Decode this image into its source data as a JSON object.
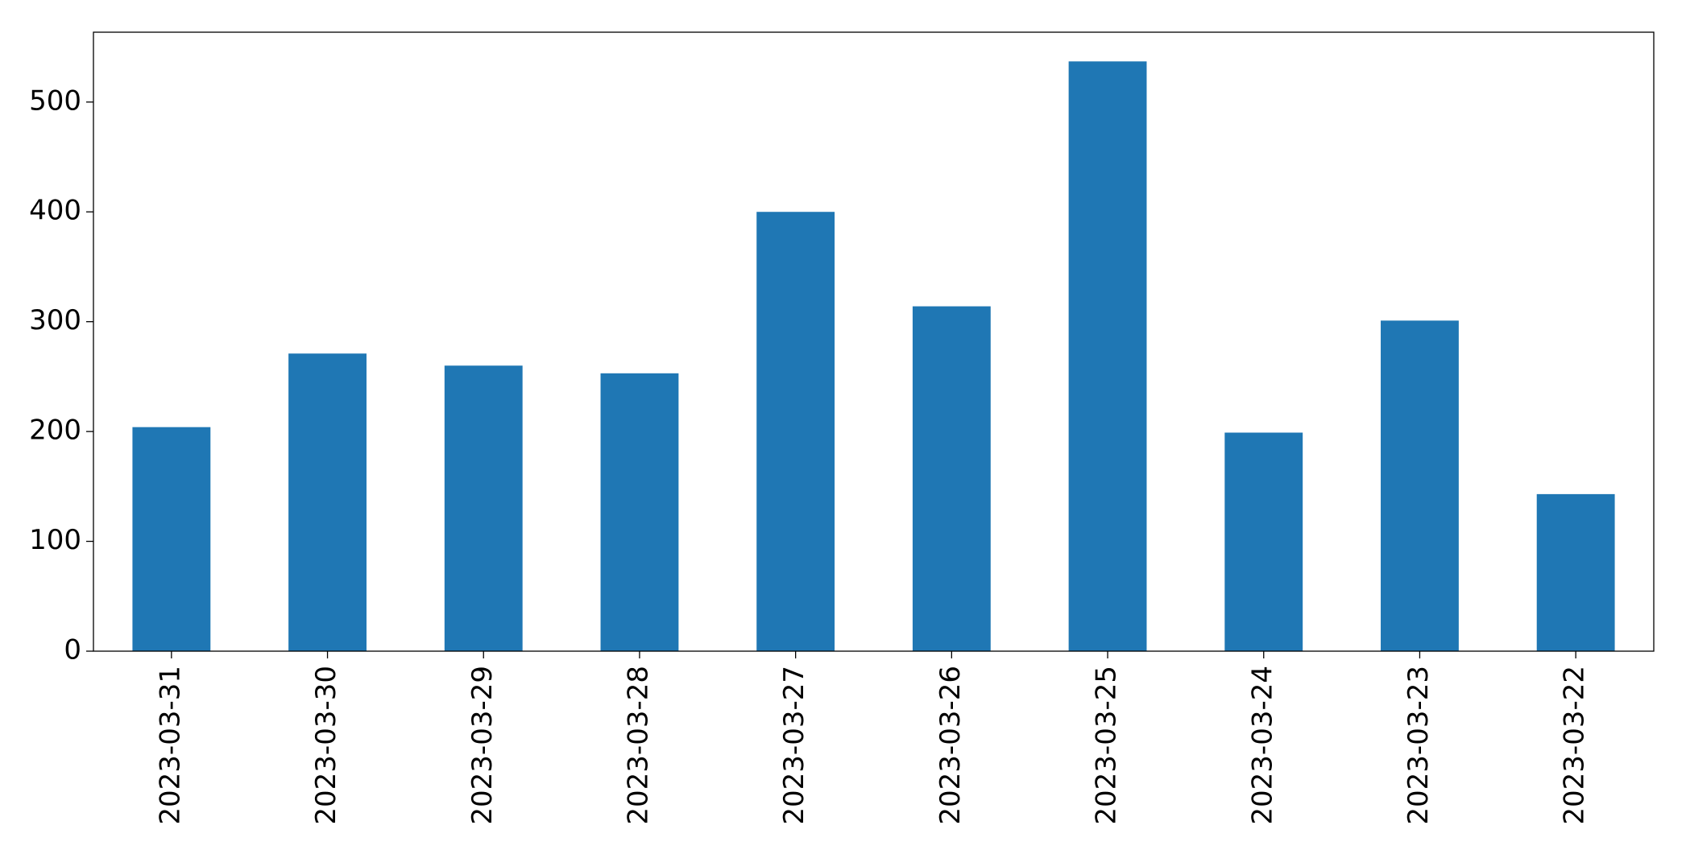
{
  "chart_data": {
    "type": "bar",
    "categories": [
      "2023-03-31",
      "2023-03-30",
      "2023-03-29",
      "2023-03-28",
      "2023-03-27",
      "2023-03-26",
      "2023-03-25",
      "2023-03-24",
      "2023-03-23",
      "2023-03-22"
    ],
    "values": [
      204,
      271,
      260,
      253,
      400,
      314,
      537,
      199,
      301,
      143
    ],
    "color": "#1f77b4",
    "ylim": [
      0,
      563.6
    ],
    "yticks": [
      0,
      100,
      200,
      300,
      400,
      500
    ],
    "grid": false
  }
}
